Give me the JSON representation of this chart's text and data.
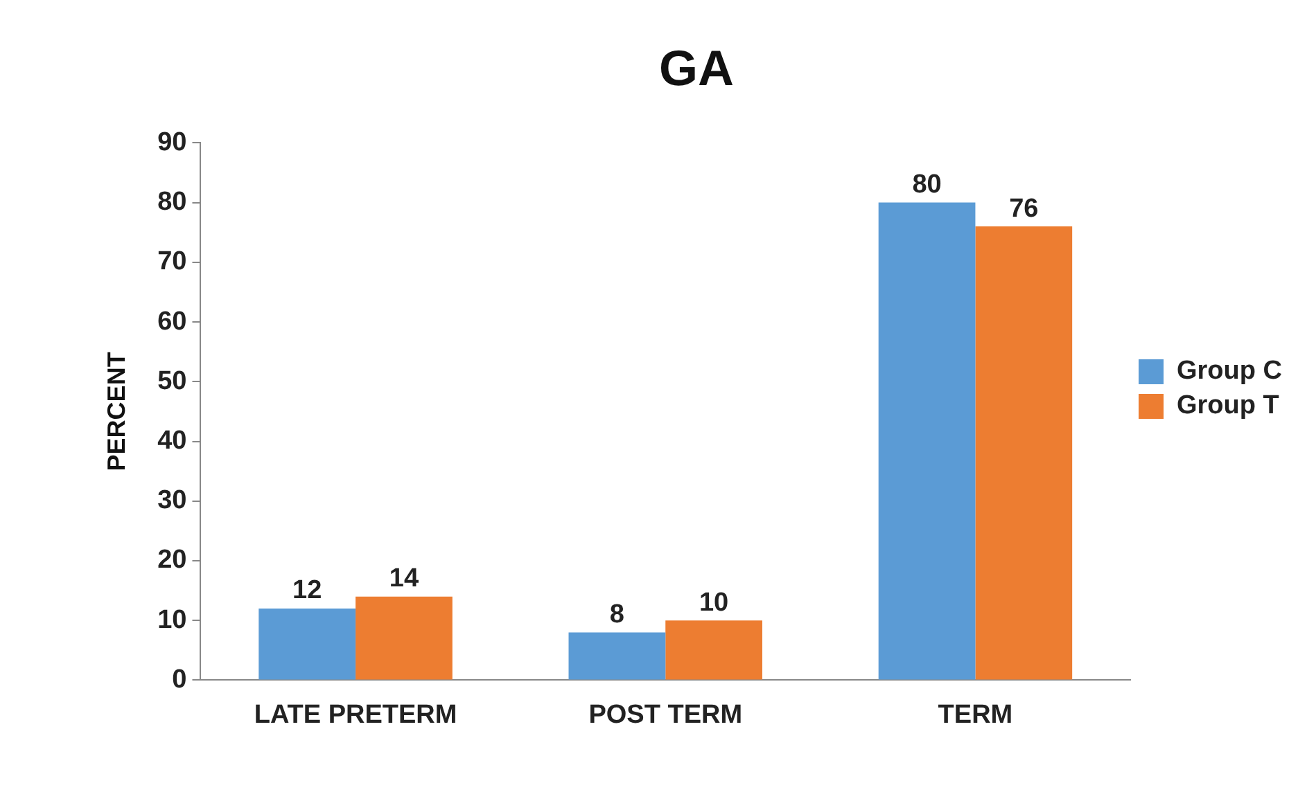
{
  "chart_data": {
    "type": "bar",
    "title": "GA",
    "ylabel": "PERCENT",
    "categories": [
      "LATE PRETERM",
      "POST TERM",
      "TERM"
    ],
    "series": [
      {
        "name": "Group C",
        "color": "#5b9bd5",
        "values": [
          12,
          8,
          80
        ]
      },
      {
        "name": "Group T",
        "color": "#ed7d31",
        "values": [
          14,
          10,
          76
        ]
      }
    ],
    "ylim": [
      0,
      90
    ],
    "yticks": [
      0,
      10,
      20,
      30,
      40,
      50,
      60,
      70,
      80,
      90
    ],
    "grid": false,
    "legend": "right",
    "data_labels": true
  }
}
